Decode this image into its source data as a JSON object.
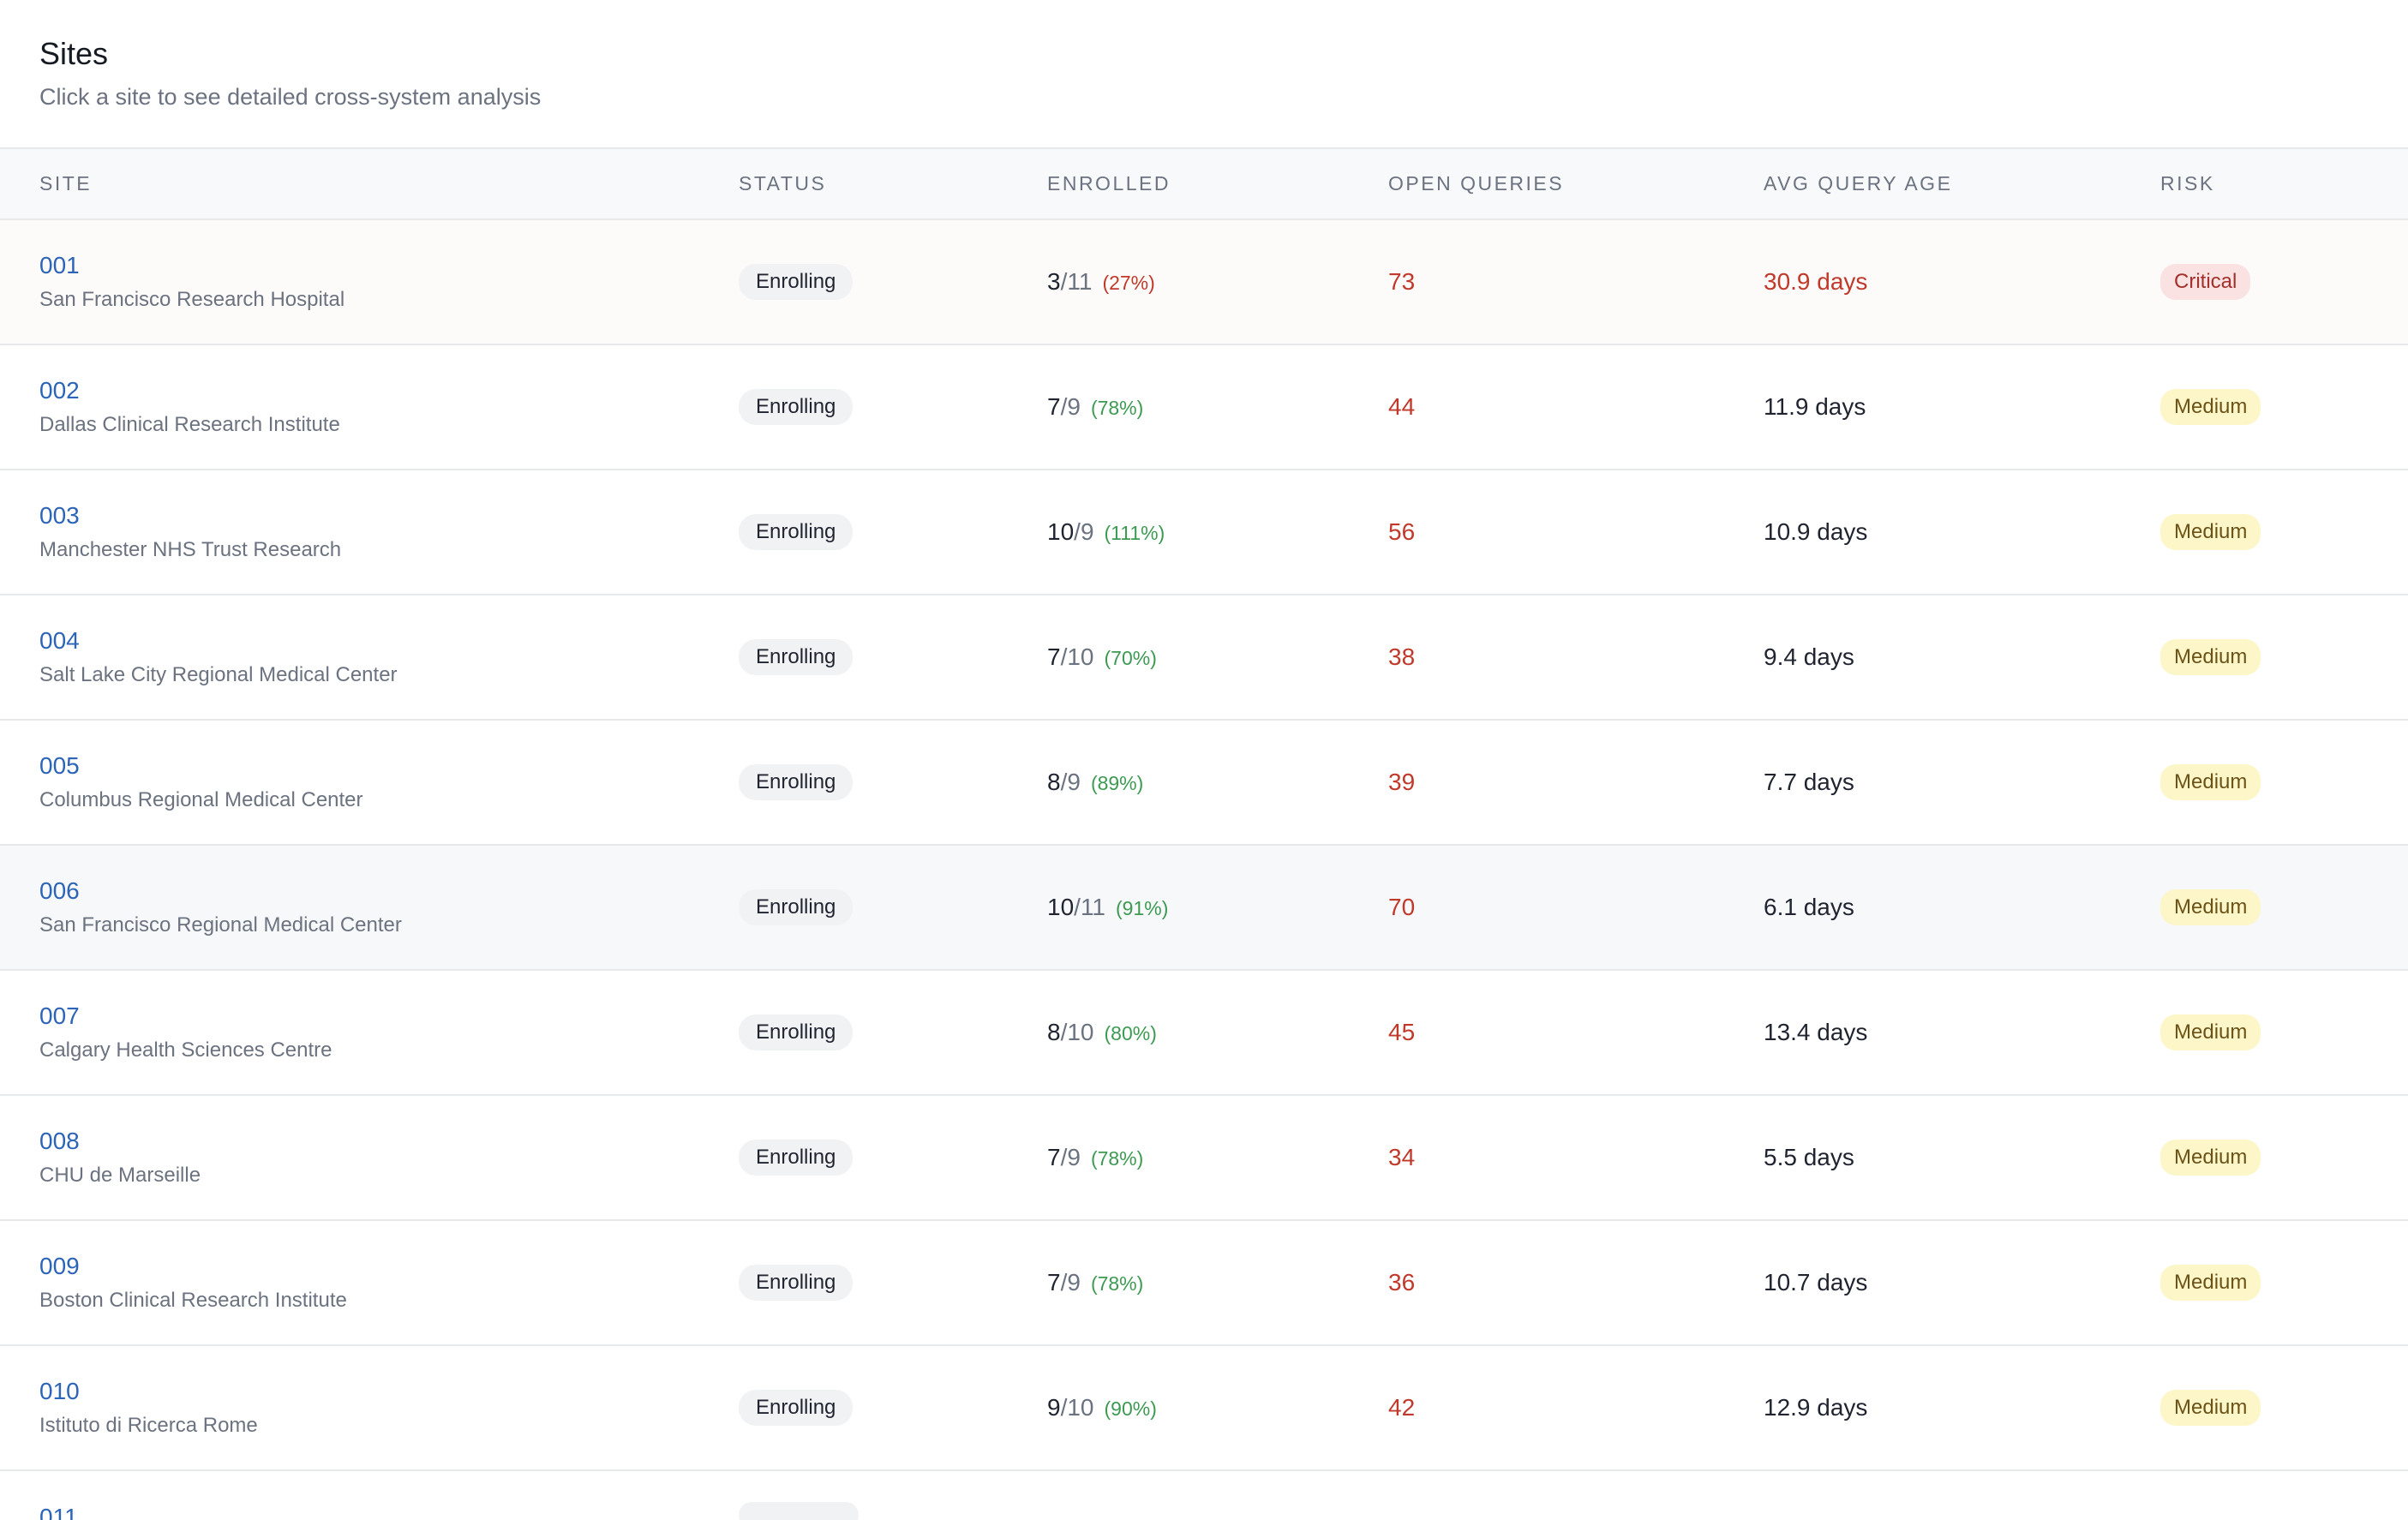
{
  "header": {
    "title": "Sites",
    "subtitle": "Click a site to see detailed cross-system analysis"
  },
  "table": {
    "columns": [
      "SITE",
      "STATUS",
      "ENROLLED",
      "OPEN QUERIES",
      "AVG QUERY AGE",
      "RISK"
    ],
    "rows": [
      {
        "id": "001",
        "name": "San Francisco Research Hospital",
        "status": "Enrolling",
        "enrolled": "3",
        "target": "11",
        "pct": "(27%)",
        "pct_level": "low",
        "open_queries": "73",
        "avg_age": "30.9 days",
        "age_critical": true,
        "risk": "Critical"
      },
      {
        "id": "002",
        "name": "Dallas Clinical Research Institute",
        "status": "Enrolling",
        "enrolled": "7",
        "target": "9",
        "pct": "(78%)",
        "pct_level": "ok",
        "open_queries": "44",
        "avg_age": "11.9 days",
        "age_critical": false,
        "risk": "Medium"
      },
      {
        "id": "003",
        "name": "Manchester NHS Trust Research",
        "status": "Enrolling",
        "enrolled": "10",
        "target": "9",
        "pct": "(111%)",
        "pct_level": "ok",
        "open_queries": "56",
        "avg_age": "10.9 days",
        "age_critical": false,
        "risk": "Medium"
      },
      {
        "id": "004",
        "name": "Salt Lake City Regional Medical Center",
        "status": "Enrolling",
        "enrolled": "7",
        "target": "10",
        "pct": "(70%)",
        "pct_level": "ok",
        "open_queries": "38",
        "avg_age": "9.4 days",
        "age_critical": false,
        "risk": "Medium"
      },
      {
        "id": "005",
        "name": "Columbus Regional Medical Center",
        "status": "Enrolling",
        "enrolled": "8",
        "target": "9",
        "pct": "(89%)",
        "pct_level": "ok",
        "open_queries": "39",
        "avg_age": "7.7 days",
        "age_critical": false,
        "risk": "Medium"
      },
      {
        "id": "006",
        "name": "San Francisco Regional Medical Center",
        "status": "Enrolling",
        "enrolled": "10",
        "target": "11",
        "pct": "(91%)",
        "pct_level": "ok",
        "open_queries": "70",
        "avg_age": "6.1 days",
        "age_critical": false,
        "risk": "Medium"
      },
      {
        "id": "007",
        "name": "Calgary Health Sciences Centre",
        "status": "Enrolling",
        "enrolled": "8",
        "target": "10",
        "pct": "(80%)",
        "pct_level": "ok",
        "open_queries": "45",
        "avg_age": "13.4 days",
        "age_critical": false,
        "risk": "Medium"
      },
      {
        "id": "008",
        "name": "CHU de Marseille",
        "status": "Enrolling",
        "enrolled": "7",
        "target": "9",
        "pct": "(78%)",
        "pct_level": "ok",
        "open_queries": "34",
        "avg_age": "5.5 days",
        "age_critical": false,
        "risk": "Medium"
      },
      {
        "id": "009",
        "name": "Boston Clinical Research Institute",
        "status": "Enrolling",
        "enrolled": "7",
        "target": "9",
        "pct": "(78%)",
        "pct_level": "ok",
        "open_queries": "36",
        "avg_age": "10.7 days",
        "age_critical": false,
        "risk": "Medium"
      },
      {
        "id": "010",
        "name": "Istituto di Ricerca Rome",
        "status": "Enrolling",
        "enrolled": "9",
        "target": "10",
        "pct": "(90%)",
        "pct_level": "ok",
        "open_queries": "42",
        "avg_age": "12.9 days",
        "age_critical": false,
        "risk": "Medium"
      }
    ],
    "partial_row_id": "011"
  },
  "colors": {
    "link": "#2c64b8",
    "danger": "#c0392b",
    "success": "#3d9a52",
    "critical_bg": "#fbe2e2",
    "medium_bg": "#fdf6c8"
  }
}
